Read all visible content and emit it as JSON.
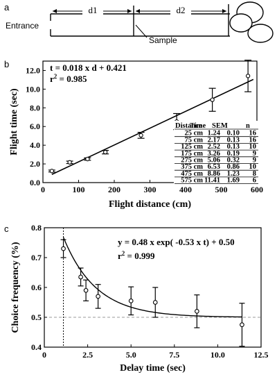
{
  "panel_a": {
    "letter": "a",
    "d1_label": "d1",
    "d2_label": "d2",
    "entrance_label": "Entrance",
    "sample_label": "Sample"
  },
  "chart_data": [
    {
      "panel": "b",
      "type": "scatter",
      "xlabel": "Flight distance (cm)",
      "ylabel": "Flight time (sec)",
      "xlim": [
        0,
        600
      ],
      "ylim": [
        0,
        13
      ],
      "x_ticks": [
        0,
        100,
        200,
        300,
        400,
        500,
        600
      ],
      "y_ticks": [
        "0.0",
        "2.0",
        "4.0",
        "6.0",
        "8.0",
        "10.0",
        "12.0"
      ],
      "equation": "t = 0.018 x d + 0.421",
      "r2_label": "r",
      "r2_exp": "2",
      "r2_value": " = 0.985",
      "fit": {
        "slope": 0.018,
        "intercept": 0.421,
        "x_range": [
          25,
          590
        ]
      },
      "points": [
        {
          "x": 25,
          "y": 1.24,
          "err": 0.1
        },
        {
          "x": 75,
          "y": 2.17,
          "err": 0.13
        },
        {
          "x": 125,
          "y": 2.52,
          "err": 0.13
        },
        {
          "x": 175,
          "y": 3.26,
          "err": 0.19
        },
        {
          "x": 275,
          "y": 5.06,
          "err": 0.32
        },
        {
          "x": 375,
          "y": 6.53,
          "err": 0.86
        },
        {
          "x": 475,
          "y": 8.86,
          "err": 1.23
        },
        {
          "x": 575,
          "y": 11.41,
          "err": 1.69
        }
      ],
      "table": {
        "columns": [
          "Distance",
          "Time",
          "SEM",
          "n"
        ],
        "rows": [
          [
            "25 cm",
            "1.24",
            "0.10",
            "16"
          ],
          [
            "75 cm",
            "2.17",
            "0.13",
            "16"
          ],
          [
            "125 cm",
            "2.52",
            "0.13",
            "10"
          ],
          [
            "175 cm",
            "3.26",
            "0.19",
            "9"
          ],
          [
            "275 cm",
            "5.06",
            "0.32",
            "9"
          ],
          [
            "375 cm",
            "6.53",
            "0.86",
            "10"
          ],
          [
            "475 cm",
            "8.86",
            "1.23",
            "8"
          ],
          [
            "575 cm",
            "11.41",
            "1.69",
            "6"
          ]
        ]
      }
    },
    {
      "panel": "c",
      "type": "scatter",
      "xlabel": "Delay time (sec)",
      "ylabel": "Choice frequency (%)",
      "xlim": [
        0,
        12.5
      ],
      "ylim": [
        0.4,
        0.8
      ],
      "x_ticks": [
        "0",
        "2.5",
        "5.0",
        "7.5",
        "10.0",
        "12.5"
      ],
      "y_ticks": [
        "0.4",
        "0.5",
        "0.6",
        "0.7",
        "0.8"
      ],
      "equation": "y = 0.48 x exp( -0.53 x t) + 0.50",
      "r2_label": "r",
      "r2_exp": "2",
      "r2_value": " = 0.999",
      "fit": {
        "a": 0.48,
        "k": 0.53,
        "c": 0.5,
        "x_range": [
          1.1,
          11.4
        ]
      },
      "chance_level": 0.5,
      "vertical_line_x": 1.1,
      "points": [
        {
          "x": 1.1,
          "y": 0.73,
          "err": 0.03
        },
        {
          "x": 2.1,
          "y": 0.635,
          "err": 0.03
        },
        {
          "x": 2.4,
          "y": 0.59,
          "err": 0.035
        },
        {
          "x": 3.1,
          "y": 0.57,
          "err": 0.04
        },
        {
          "x": 5.0,
          "y": 0.555,
          "err": 0.047
        },
        {
          "x": 6.4,
          "y": 0.55,
          "err": 0.05
        },
        {
          "x": 8.8,
          "y": 0.52,
          "err": 0.055
        },
        {
          "x": 11.4,
          "y": 0.475,
          "err": 0.072
        }
      ]
    }
  ]
}
